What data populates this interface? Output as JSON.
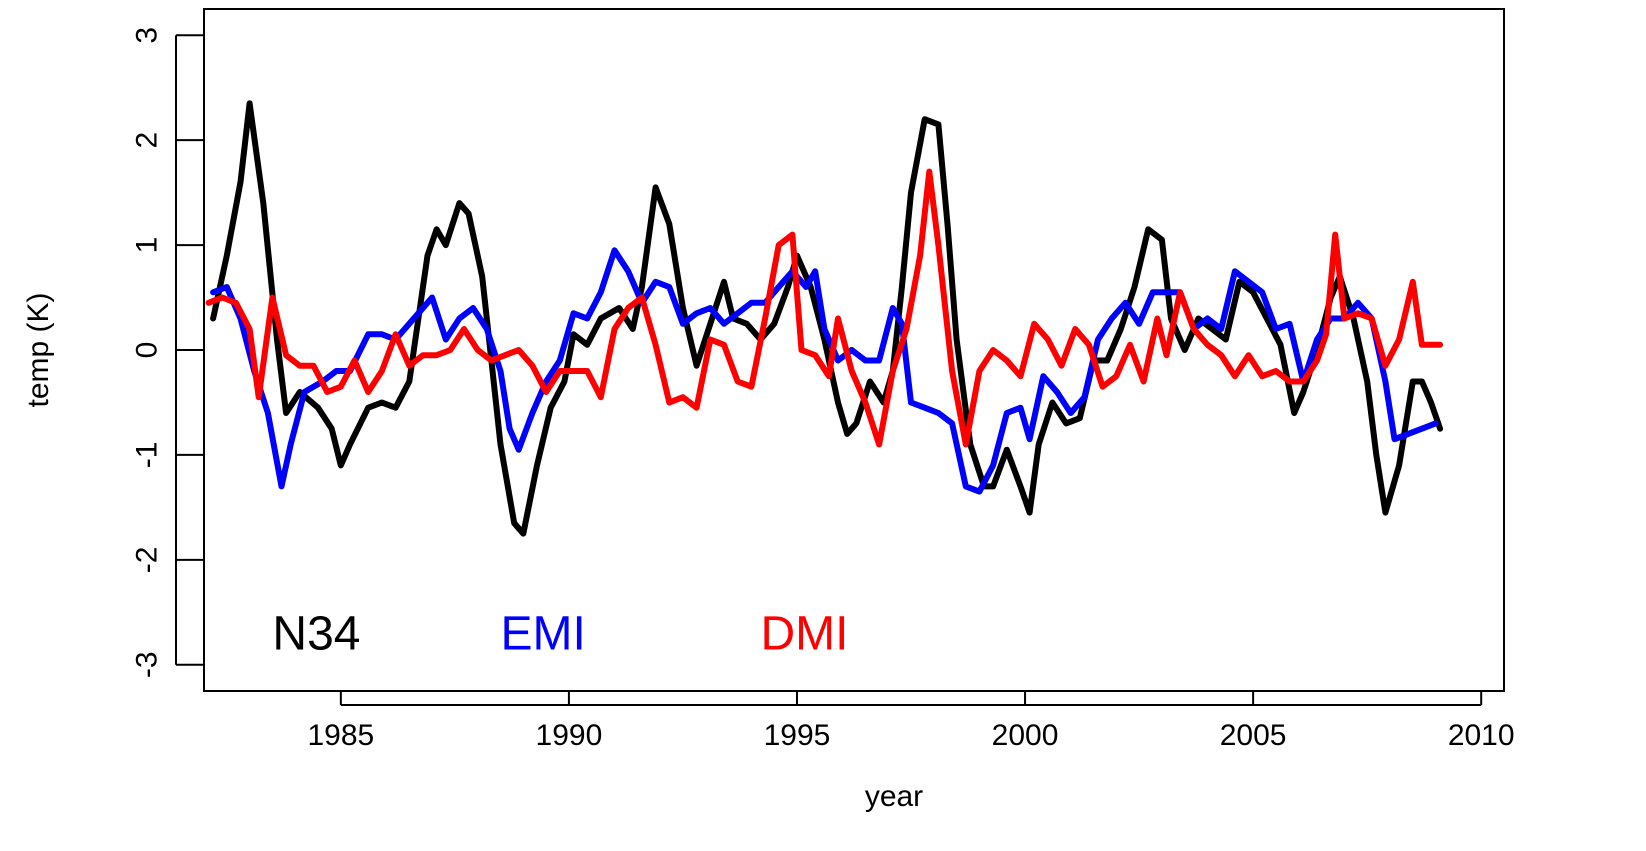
{
  "chart_data": {
    "type": "line",
    "title": "",
    "xlabel": "year",
    "ylabel": "temp (K)",
    "xlim": [
      1982,
      2010.5
    ],
    "ylim": [
      -3.25,
      3.25
    ],
    "xticks": [
      1985,
      1990,
      1995,
      2000,
      2005,
      2010
    ],
    "yticks": [
      -3,
      -2,
      -1,
      0,
      1,
      2,
      3
    ],
    "xtick_labels": [
      "1985",
      "1990",
      "1995",
      "2000",
      "2005",
      "2010"
    ],
    "ytick_labels": [
      "-3",
      "-2",
      "-1",
      "0",
      "1",
      "2",
      "3"
    ],
    "grid": false,
    "legend_position": "bottom-left",
    "series": [
      {
        "name": "N34",
        "color": "#000000",
        "points": [
          [
            1982.2,
            0.3
          ],
          [
            1982.5,
            0.9
          ],
          [
            1982.8,
            1.6
          ],
          [
            1983.0,
            2.35
          ],
          [
            1983.3,
            1.4
          ],
          [
            1983.6,
            0.1
          ],
          [
            1983.8,
            -0.6
          ],
          [
            1984.1,
            -0.4
          ],
          [
            1984.5,
            -0.55
          ],
          [
            1984.8,
            -0.75
          ],
          [
            1985.0,
            -1.1
          ],
          [
            1985.2,
            -0.9
          ],
          [
            1985.6,
            -0.55
          ],
          [
            1985.9,
            -0.5
          ],
          [
            1986.2,
            -0.55
          ],
          [
            1986.5,
            -0.3
          ],
          [
            1986.7,
            0.3
          ],
          [
            1986.9,
            0.9
          ],
          [
            1987.1,
            1.15
          ],
          [
            1987.3,
            1.0
          ],
          [
            1987.6,
            1.4
          ],
          [
            1987.8,
            1.3
          ],
          [
            1988.1,
            0.7
          ],
          [
            1988.3,
            -0.1
          ],
          [
            1988.5,
            -0.9
          ],
          [
            1988.8,
            -1.65
          ],
          [
            1989.0,
            -1.75
          ],
          [
            1989.3,
            -1.1
          ],
          [
            1989.6,
            -0.55
          ],
          [
            1989.9,
            -0.3
          ],
          [
            1990.1,
            0.15
          ],
          [
            1990.4,
            0.05
          ],
          [
            1990.7,
            0.3
          ],
          [
            1991.1,
            0.4
          ],
          [
            1991.4,
            0.2
          ],
          [
            1991.6,
            0.6
          ],
          [
            1991.9,
            1.55
          ],
          [
            1992.2,
            1.2
          ],
          [
            1992.5,
            0.4
          ],
          [
            1992.8,
            -0.15
          ],
          [
            1993.1,
            0.25
          ],
          [
            1993.4,
            0.65
          ],
          [
            1993.6,
            0.3
          ],
          [
            1993.9,
            0.25
          ],
          [
            1994.2,
            0.1
          ],
          [
            1994.5,
            0.25
          ],
          [
            1994.8,
            0.6
          ],
          [
            1995.0,
            0.9
          ],
          [
            1995.3,
            0.6
          ],
          [
            1995.6,
            0.1
          ],
          [
            1995.9,
            -0.5
          ],
          [
            1996.1,
            -0.8
          ],
          [
            1996.3,
            -0.7
          ],
          [
            1996.6,
            -0.3
          ],
          [
            1996.9,
            -0.5
          ],
          [
            1997.1,
            -0.2
          ],
          [
            1997.3,
            0.6
          ],
          [
            1997.5,
            1.5
          ],
          [
            1997.8,
            2.2
          ],
          [
            1998.1,
            2.15
          ],
          [
            1998.3,
            1.2
          ],
          [
            1998.5,
            0.1
          ],
          [
            1998.8,
            -0.9
          ],
          [
            1999.1,
            -1.3
          ],
          [
            1999.3,
            -1.3
          ],
          [
            1999.6,
            -0.95
          ],
          [
            1999.9,
            -1.3
          ],
          [
            2000.1,
            -1.55
          ],
          [
            2000.3,
            -0.9
          ],
          [
            2000.6,
            -0.5
          ],
          [
            2000.9,
            -0.7
          ],
          [
            2001.2,
            -0.65
          ],
          [
            2001.5,
            -0.1
          ],
          [
            2001.8,
            -0.1
          ],
          [
            2002.1,
            0.2
          ],
          [
            2002.4,
            0.6
          ],
          [
            2002.7,
            1.15
          ],
          [
            2003.0,
            1.05
          ],
          [
            2003.2,
            0.3
          ],
          [
            2003.5,
            0.0
          ],
          [
            2003.8,
            0.3
          ],
          [
            2004.1,
            0.2
          ],
          [
            2004.4,
            0.1
          ],
          [
            2004.7,
            0.65
          ],
          [
            2005.0,
            0.55
          ],
          [
            2005.3,
            0.3
          ],
          [
            2005.6,
            0.05
          ],
          [
            2005.9,
            -0.6
          ],
          [
            2006.1,
            -0.4
          ],
          [
            2006.4,
            0.0
          ],
          [
            2006.7,
            0.5
          ],
          [
            2006.9,
            0.7
          ],
          [
            2007.2,
            0.3
          ],
          [
            2007.5,
            -0.3
          ],
          [
            2007.7,
            -1.0
          ],
          [
            2007.9,
            -1.55
          ],
          [
            2008.2,
            -1.1
          ],
          [
            2008.5,
            -0.3
          ],
          [
            2008.7,
            -0.3
          ],
          [
            2008.9,
            -0.5
          ],
          [
            2009.1,
            -0.75
          ]
        ]
      },
      {
        "name": "EMI",
        "color": "#0000ff",
        "points": [
          [
            1982.2,
            0.55
          ],
          [
            1982.5,
            0.6
          ],
          [
            1982.8,
            0.3
          ],
          [
            1983.1,
            -0.2
          ],
          [
            1983.4,
            -0.6
          ],
          [
            1983.7,
            -1.3
          ],
          [
            1983.9,
            -0.9
          ],
          [
            1984.2,
            -0.4
          ],
          [
            1984.6,
            -0.3
          ],
          [
            1984.9,
            -0.2
          ],
          [
            1985.2,
            -0.2
          ],
          [
            1985.6,
            0.15
          ],
          [
            1985.9,
            0.15
          ],
          [
            1986.2,
            0.1
          ],
          [
            1986.6,
            0.3
          ],
          [
            1987.0,
            0.5
          ],
          [
            1987.3,
            0.1
          ],
          [
            1987.6,
            0.3
          ],
          [
            1987.9,
            0.4
          ],
          [
            1988.2,
            0.2
          ],
          [
            1988.5,
            -0.2
          ],
          [
            1988.7,
            -0.75
          ],
          [
            1988.9,
            -0.95
          ],
          [
            1989.2,
            -0.6
          ],
          [
            1989.5,
            -0.3
          ],
          [
            1989.8,
            -0.1
          ],
          [
            1990.1,
            0.35
          ],
          [
            1990.4,
            0.3
          ],
          [
            1990.7,
            0.55
          ],
          [
            1991.0,
            0.95
          ],
          [
            1991.3,
            0.75
          ],
          [
            1991.6,
            0.45
          ],
          [
            1991.9,
            0.65
          ],
          [
            1992.2,
            0.6
          ],
          [
            1992.5,
            0.25
          ],
          [
            1992.8,
            0.35
          ],
          [
            1993.1,
            0.4
          ],
          [
            1993.4,
            0.25
          ],
          [
            1993.7,
            0.35
          ],
          [
            1994.0,
            0.45
          ],
          [
            1994.3,
            0.45
          ],
          [
            1994.6,
            0.6
          ],
          [
            1994.9,
            0.75
          ],
          [
            1995.2,
            0.6
          ],
          [
            1995.4,
            0.75
          ],
          [
            1995.6,
            0.2
          ],
          [
            1995.9,
            -0.1
          ],
          [
            1996.2,
            0.0
          ],
          [
            1996.5,
            -0.1
          ],
          [
            1996.8,
            -0.1
          ],
          [
            1997.1,
            0.4
          ],
          [
            1997.3,
            0.25
          ],
          [
            1997.5,
            -0.5
          ],
          [
            1997.8,
            -0.55
          ],
          [
            1998.1,
            -0.6
          ],
          [
            1998.4,
            -0.7
          ],
          [
            1998.7,
            -1.3
          ],
          [
            1999.0,
            -1.35
          ],
          [
            1999.3,
            -1.1
          ],
          [
            1999.6,
            -0.6
          ],
          [
            1999.9,
            -0.55
          ],
          [
            2000.1,
            -0.85
          ],
          [
            2000.4,
            -0.25
          ],
          [
            2000.7,
            -0.4
          ],
          [
            2001.0,
            -0.6
          ],
          [
            2001.3,
            -0.45
          ],
          [
            2001.6,
            0.1
          ],
          [
            2001.9,
            0.3
          ],
          [
            2002.2,
            0.45
          ],
          [
            2002.5,
            0.25
          ],
          [
            2002.8,
            0.55
          ],
          [
            2003.1,
            0.55
          ],
          [
            2003.4,
            0.55
          ],
          [
            2003.7,
            0.2
          ],
          [
            2004.0,
            0.3
          ],
          [
            2004.3,
            0.2
          ],
          [
            2004.6,
            0.75
          ],
          [
            2004.9,
            0.65
          ],
          [
            2005.2,
            0.55
          ],
          [
            2005.5,
            0.2
          ],
          [
            2005.8,
            0.25
          ],
          [
            2006.1,
            -0.3
          ],
          [
            2006.4,
            0.1
          ],
          [
            2006.7,
            0.3
          ],
          [
            2007.0,
            0.3
          ],
          [
            2007.3,
            0.45
          ],
          [
            2007.6,
            0.3
          ],
          [
            2007.9,
            -0.3
          ],
          [
            2008.1,
            -0.85
          ],
          [
            2008.4,
            -0.8
          ],
          [
            2008.7,
            -0.75
          ],
          [
            2009.0,
            -0.7
          ]
        ]
      },
      {
        "name": "DMI",
        "color": "#ff0000",
        "points": [
          [
            1982.1,
            0.45
          ],
          [
            1982.4,
            0.5
          ],
          [
            1982.7,
            0.45
          ],
          [
            1983.0,
            0.2
          ],
          [
            1983.2,
            -0.45
          ],
          [
            1983.5,
            0.5
          ],
          [
            1983.8,
            -0.05
          ],
          [
            1984.1,
            -0.15
          ],
          [
            1984.4,
            -0.15
          ],
          [
            1984.7,
            -0.4
          ],
          [
            1985.0,
            -0.35
          ],
          [
            1985.3,
            -0.1
          ],
          [
            1985.6,
            -0.4
          ],
          [
            1985.9,
            -0.2
          ],
          [
            1986.2,
            0.15
          ],
          [
            1986.5,
            -0.15
          ],
          [
            1986.8,
            -0.05
          ],
          [
            1987.1,
            -0.05
          ],
          [
            1987.4,
            0.0
          ],
          [
            1987.7,
            0.2
          ],
          [
            1988.0,
            0.0
          ],
          [
            1988.3,
            -0.1
          ],
          [
            1988.6,
            -0.05
          ],
          [
            1988.9,
            0.0
          ],
          [
            1989.2,
            -0.15
          ],
          [
            1989.5,
            -0.4
          ],
          [
            1989.8,
            -0.2
          ],
          [
            1990.1,
            -0.2
          ],
          [
            1990.4,
            -0.2
          ],
          [
            1990.7,
            -0.45
          ],
          [
            1991.0,
            0.2
          ],
          [
            1991.3,
            0.4
          ],
          [
            1991.6,
            0.5
          ],
          [
            1991.9,
            0.05
          ],
          [
            1992.2,
            -0.5
          ],
          [
            1992.5,
            -0.45
          ],
          [
            1992.8,
            -0.55
          ],
          [
            1993.1,
            0.1
          ],
          [
            1993.4,
            0.05
          ],
          [
            1993.7,
            -0.3
          ],
          [
            1994.0,
            -0.35
          ],
          [
            1994.3,
            0.3
          ],
          [
            1994.6,
            1.0
          ],
          [
            1994.9,
            1.1
          ],
          [
            1995.1,
            0.0
          ],
          [
            1995.4,
            -0.05
          ],
          [
            1995.7,
            -0.25
          ],
          [
            1995.9,
            0.3
          ],
          [
            1996.2,
            -0.2
          ],
          [
            1996.5,
            -0.5
          ],
          [
            1996.8,
            -0.9
          ],
          [
            1997.1,
            -0.2
          ],
          [
            1997.4,
            0.2
          ],
          [
            1997.7,
            0.9
          ],
          [
            1997.9,
            1.7
          ],
          [
            1998.1,
            1.0
          ],
          [
            1998.4,
            -0.2
          ],
          [
            1998.7,
            -0.9
          ],
          [
            1999.0,
            -0.2
          ],
          [
            1999.3,
            0.0
          ],
          [
            1999.6,
            -0.1
          ],
          [
            1999.9,
            -0.25
          ],
          [
            2000.2,
            0.25
          ],
          [
            2000.5,
            0.1
          ],
          [
            2000.8,
            -0.15
          ],
          [
            2001.1,
            0.2
          ],
          [
            2001.4,
            0.05
          ],
          [
            2001.7,
            -0.35
          ],
          [
            2002.0,
            -0.25
          ],
          [
            2002.3,
            0.05
          ],
          [
            2002.6,
            -0.3
          ],
          [
            2002.9,
            0.3
          ],
          [
            2003.1,
            -0.05
          ],
          [
            2003.4,
            0.55
          ],
          [
            2003.7,
            0.2
          ],
          [
            2004.0,
            0.05
          ],
          [
            2004.3,
            -0.05
          ],
          [
            2004.6,
            -0.25
          ],
          [
            2004.9,
            -0.05
          ],
          [
            2005.2,
            -0.25
          ],
          [
            2005.5,
            -0.2
          ],
          [
            2005.8,
            -0.3
          ],
          [
            2006.1,
            -0.3
          ],
          [
            2006.4,
            -0.1
          ],
          [
            2006.6,
            0.15
          ],
          [
            2006.8,
            1.1
          ],
          [
            2007.0,
            0.3
          ],
          [
            2007.3,
            0.35
          ],
          [
            2007.6,
            0.3
          ],
          [
            2007.9,
            -0.15
          ],
          [
            2008.2,
            0.1
          ],
          [
            2008.5,
            0.65
          ],
          [
            2008.7,
            0.05
          ],
          [
            2009.1,
            0.05
          ]
        ]
      }
    ]
  }
}
